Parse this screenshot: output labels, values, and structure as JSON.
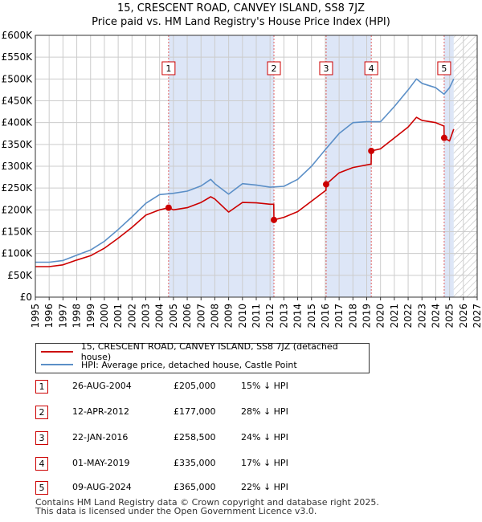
{
  "title_line1": "15, CRESCENT ROAD, CANVEY ISLAND, SS8 7JZ",
  "title_line2": "Price paid vs. HM Land Registry's House Price Index (HPI)",
  "colors": {
    "property": "#cc0000",
    "hpi": "#5b8fc7",
    "shade": "#dde6f7",
    "marker_line": "#e06060",
    "grid": "#cccccc",
    "hatch": "#bbbbbb"
  },
  "legend": {
    "property_label": "15, CRESCENT ROAD, CANVEY ISLAND, SS8 7JZ (detached house)",
    "hpi_label": "HPI: Average price, detached house, Castle Point"
  },
  "sales": [
    {
      "num": "1",
      "date": "26-AUG-2004",
      "price": "£205,000",
      "hpi_diff": "15% ↓ HPI",
      "year": 2004.65,
      "value": 205000
    },
    {
      "num": "2",
      "date": "12-APR-2012",
      "price": "£177,000",
      "hpi_diff": "28% ↓ HPI",
      "year": 2012.28,
      "value": 177000
    },
    {
      "num": "3",
      "date": "22-JAN-2016",
      "price": "£258,500",
      "hpi_diff": "24% ↓ HPI",
      "year": 2016.06,
      "value": 258500
    },
    {
      "num": "4",
      "date": "01-MAY-2019",
      "price": "£335,000",
      "hpi_diff": "17% ↓ HPI",
      "year": 2019.33,
      "value": 335000
    },
    {
      "num": "5",
      "date": "09-AUG-2024",
      "price": "£365,000",
      "hpi_diff": "22% ↓ HPI",
      "year": 2024.61,
      "value": 365000
    }
  ],
  "footer_line1": "Contains HM Land Registry data © Crown copyright and database right 2025.",
  "footer_line2": "This data is licensed under the Open Government Licence v3.0.",
  "chart_data": {
    "type": "line",
    "title": "15, CRESCENT ROAD, CANVEY ISLAND, SS8 7JZ — Price paid vs. HM Land Registry's House Price Index (HPI)",
    "xlabel": "",
    "ylabel": "",
    "xlim": [
      1995,
      2027
    ],
    "ylim": [
      0,
      600000
    ],
    "x_ticks": [
      1995,
      1996,
      1997,
      1998,
      1999,
      2000,
      2001,
      2002,
      2003,
      2004,
      2005,
      2006,
      2007,
      2008,
      2009,
      2010,
      2011,
      2012,
      2013,
      2014,
      2015,
      2016,
      2017,
      2018,
      2019,
      2020,
      2021,
      2022,
      2023,
      2024,
      2025,
      2026,
      2027
    ],
    "y_ticks": [
      0,
      50000,
      100000,
      150000,
      200000,
      250000,
      300000,
      350000,
      400000,
      450000,
      500000,
      550000,
      600000
    ],
    "y_tick_labels": [
      "£0",
      "£50K",
      "£100K",
      "£150K",
      "£200K",
      "£250K",
      "£300K",
      "£350K",
      "£400K",
      "£450K",
      "£500K",
      "£550K",
      "£600K"
    ],
    "shaded_periods": [
      [
        2004.65,
        2012.28
      ],
      [
        2016.06,
        2019.33
      ],
      [
        2024.61,
        2025.3
      ]
    ],
    "forecast_hatch_from": 2025.3,
    "series": [
      {
        "name": "15, CRESCENT ROAD, CANVEY ISLAND, SS8 7JZ (detached house)",
        "color": "#cc0000",
        "x": [
          1995,
          1996,
          1997,
          1998,
          1999,
          2000,
          2001,
          2002,
          2003,
          2004,
          2004.65,
          2005,
          2006,
          2007,
          2007.7,
          2008,
          2009,
          2010,
          2011,
          2012,
          2012.27,
          2012.28,
          2013,
          2014,
          2015,
          2016.05,
          2016.06,
          2017,
          2018,
          2019.32,
          2019.33,
          2020,
          2021,
          2022,
          2022.6,
          2023,
          2024,
          2024.6,
          2024.61,
          2025,
          2025.3
        ],
        "y": [
          70000,
          70000,
          74000,
          85000,
          95000,
          112000,
          135000,
          160000,
          188000,
          200000,
          205000,
          200000,
          205000,
          217000,
          230000,
          225000,
          195000,
          217000,
          216000,
          213000,
          213000,
          177000,
          183000,
          196000,
          220000,
          245000,
          258500,
          285000,
          297000,
          305000,
          335000,
          340000,
          365000,
          390000,
          412000,
          405000,
          400000,
          392000,
          365000,
          358000,
          385000
        ]
      },
      {
        "name": "HPI: Average price, detached house, Castle Point",
        "color": "#5b8fc7",
        "x": [
          1995,
          1996,
          1997,
          1998,
          1999,
          2000,
          2001,
          2002,
          2003,
          2004,
          2005,
          2006,
          2007,
          2007.7,
          2008,
          2009,
          2010,
          2011,
          2012,
          2013,
          2014,
          2015,
          2016,
          2017,
          2018,
          2019,
          2020,
          2021,
          2022,
          2022.6,
          2023,
          2024,
          2024.6,
          2025,
          2025.3
        ],
        "y": [
          80000,
          80000,
          84000,
          96000,
          108000,
          128000,
          155000,
          184000,
          215000,
          235000,
          238000,
          243000,
          255000,
          270000,
          260000,
          236000,
          260000,
          257000,
          252000,
          254000,
          270000,
          300000,
          338000,
          375000,
          400000,
          402000,
          402000,
          437000,
          475000,
          500000,
          490000,
          480000,
          465000,
          480000,
          500000
        ]
      }
    ]
  }
}
